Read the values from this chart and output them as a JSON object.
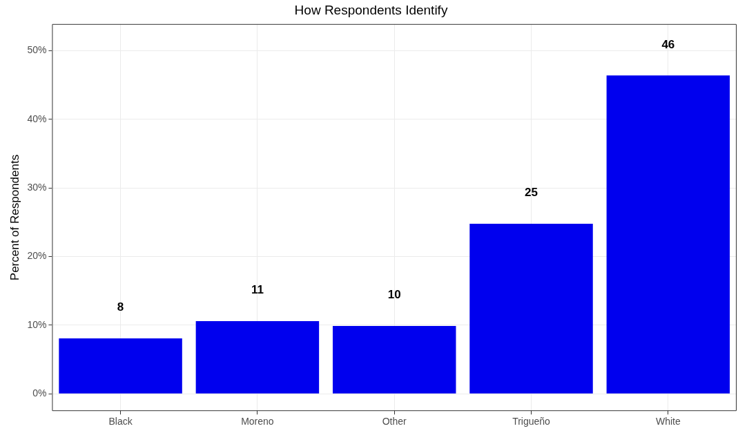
{
  "chart_data": {
    "type": "bar",
    "title": "How Respondents Identify",
    "ylabel": "Percent of Respondents",
    "categories": [
      "Black",
      "Moreno",
      "Other",
      "Trigueño",
      "White"
    ],
    "values": [
      8.1,
      10.6,
      9.9,
      24.8,
      46.4
    ],
    "value_labels": [
      "8",
      "11",
      "10",
      "25",
      "46"
    ],
    "color": "#0000ee",
    "ylim": [
      -2.5,
      53.9
    ],
    "yticks": [
      {
        "value": 0,
        "label": "0%"
      },
      {
        "value": 10,
        "label": "10%"
      },
      {
        "value": 20,
        "label": "20%"
      },
      {
        "value": 30,
        "label": "30%"
      },
      {
        "value": 40,
        "label": "40%"
      },
      {
        "value": 50,
        "label": "50%"
      }
    ],
    "grid": true,
    "legend": false
  }
}
